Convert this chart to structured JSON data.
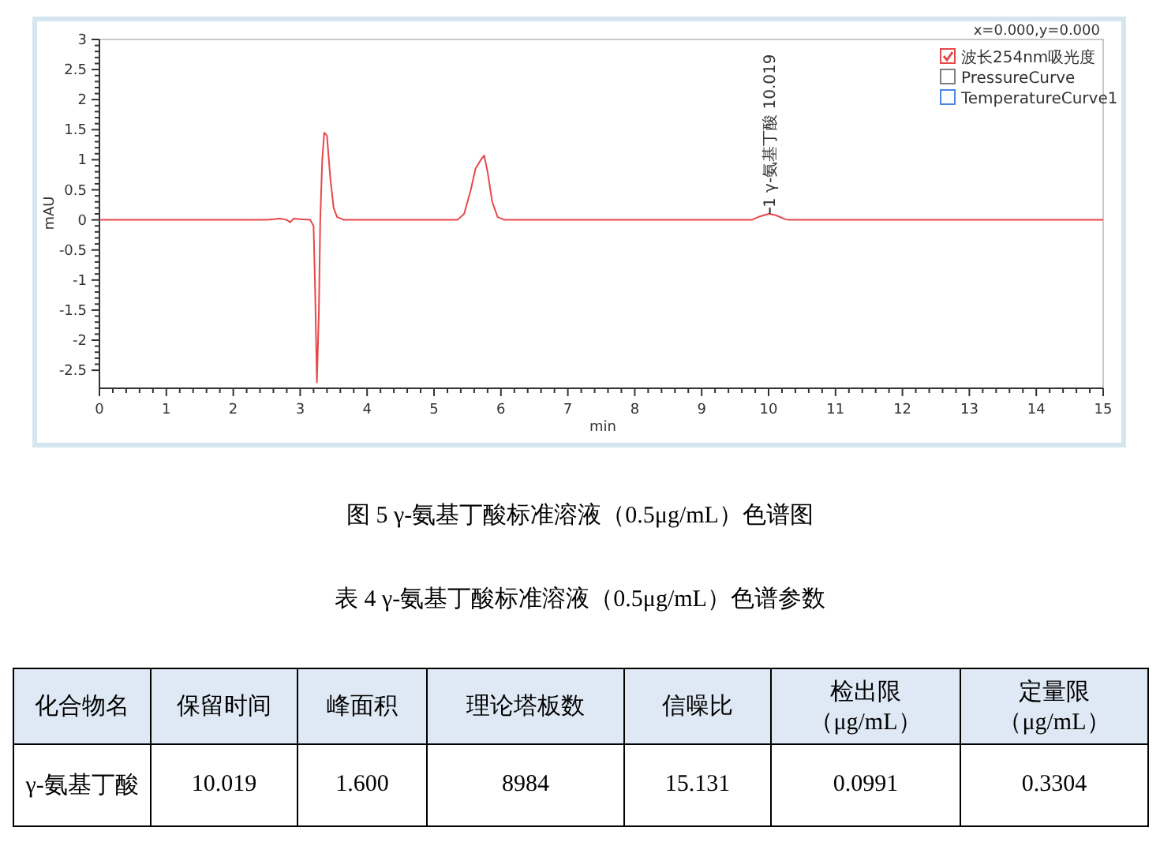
{
  "chart_data": [
    {
      "type": "line",
      "xlabel": "min",
      "ylabel": "mAU",
      "xlim": [
        0,
        15
      ],
      "ylim": [
        -2.8,
        3
      ],
      "xticks": [
        0,
        1,
        2,
        3,
        4,
        5,
        6,
        7,
        8,
        9,
        10,
        11,
        12,
        13,
        14,
        15
      ],
      "yticks": [
        -2.5,
        -2,
        -1.5,
        -1,
        -0.5,
        0,
        0.5,
        1,
        1.5,
        2,
        2.5,
        3
      ],
      "grid": false,
      "legend": "top right",
      "marker": "none",
      "line_style": "solid",
      "series": [
        {
          "name": "波长254nm吸光度",
          "color": "#e8474a",
          "x": [
            0,
            1.1,
            2.2,
            2.5,
            2.7,
            2.8,
            2.85,
            2.9,
            3.0,
            3.15,
            3.2,
            3.22,
            3.25,
            3.28,
            3.3,
            3.33,
            3.36,
            3.4,
            3.45,
            3.5,
            3.55,
            3.65,
            5.35,
            5.45,
            5.55,
            5.62,
            5.7,
            5.75,
            5.8,
            5.87,
            5.95,
            6.05,
            9.75,
            9.85,
            10.0,
            10.1,
            10.25,
            10.3,
            12,
            15
          ],
          "values": [
            0,
            0,
            0,
            0,
            0.02,
            0,
            -0.04,
            0.02,
            0.01,
            0,
            -0.1,
            -1,
            -2.7,
            -1.5,
            0,
            1,
            1.45,
            1.4,
            0.7,
            0.2,
            0.05,
            0,
            0,
            0.1,
            0.5,
            0.85,
            1.0,
            1.07,
            0.8,
            0.3,
            0.05,
            0,
            0,
            0.05,
            0.1,
            0.08,
            0.01,
            0,
            0,
            0
          ]
        },
        {
          "name": "PressureCurve",
          "color": "#808080"
        },
        {
          "name": "TemperatureCurve1",
          "color": "#4a86e8"
        }
      ],
      "annotations": [
        "x=0.000,y=0.000",
        {
          "text": "1 γ-氨基丁酸 10.019",
          "x": 10.019,
          "y": 0.1
        },
        "图 5 γ-氨基丁酸标准溶液（0.5μg/mL）色谱图"
      ]
    },
    {
      "type": "other",
      "title": "表 4 γ-氨基丁酸标准溶液（0.5μg/mL）色谱参数",
      "categories": [
        "化合物名",
        "保留时间",
        "峰面积",
        "理论塔板数",
        "信噪比",
        "检出限（μg/mL）",
        "定量限（μg/mL）"
      ],
      "annotations": [
        "γ-氨基丁酸",
        "10.019",
        "1.600",
        "8984",
        "15.131",
        "0.0991",
        "0.3304"
      ]
    }
  ]
}
